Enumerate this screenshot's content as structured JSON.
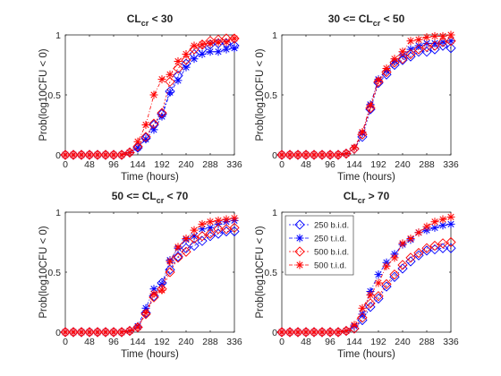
{
  "chart_data": [
    {
      "type": "line",
      "title": "CL",
      "title_sub": "cr",
      "title_suffix": " < 30",
      "title_prefix": "",
      "xlabel": "Time (hours)",
      "ylabel": "Prob(log10CFU < 0)",
      "xlim": [
        0,
        336
      ],
      "ylim": [
        0,
        1
      ],
      "xticks": [
        "0",
        "48",
        "96",
        "144",
        "192",
        "240",
        "288",
        "336"
      ],
      "yticks": [
        "0",
        "0.5",
        "1"
      ],
      "x": [
        0,
        16,
        32,
        48,
        64,
        80,
        96,
        112,
        128,
        144,
        160,
        176,
        192,
        208,
        224,
        240,
        256,
        272,
        288,
        304,
        320,
        336
      ],
      "series": [
        {
          "name": "250 b.i.d.",
          "color": "#0000ff",
          "marker": "diamond",
          "values": [
            0,
            0,
            0,
            0,
            0,
            0,
            0,
            0,
            0.02,
            0.06,
            0.14,
            0.25,
            0.34,
            0.53,
            0.66,
            0.76,
            0.84,
            0.88,
            0.92,
            0.93,
            0.93,
            0.91
          ]
        },
        {
          "name": "250 t.i.d.",
          "color": "#0000ff",
          "marker": "star",
          "values": [
            0,
            0,
            0,
            0,
            0,
            0,
            0,
            0,
            0.02,
            0.06,
            0.13,
            0.21,
            0.32,
            0.52,
            0.62,
            0.73,
            0.8,
            0.84,
            0.86,
            0.86,
            0.88,
            0.89
          ]
        },
        {
          "name": "500 b.i.d.",
          "color": "#ff0000",
          "marker": "diamond",
          "values": [
            0,
            0,
            0,
            0,
            0,
            0,
            0,
            0,
            0.02,
            0.07,
            0.15,
            0.26,
            0.35,
            0.61,
            0.72,
            0.79,
            0.88,
            0.92,
            0.95,
            0.96,
            0.97,
            0.97
          ]
        },
        {
          "name": "500 t.i.d.",
          "color": "#ff0000",
          "marker": "star",
          "values": [
            0,
            0,
            0,
            0,
            0,
            0,
            0,
            0,
            0.02,
            0.11,
            0.25,
            0.5,
            0.63,
            0.67,
            0.78,
            0.84,
            0.91,
            0.92,
            0.93,
            0.94,
            0.94,
            0.97
          ]
        }
      ]
    },
    {
      "type": "line",
      "title": "CL",
      "title_sub": "cr",
      "title_suffix": " < 50",
      "title_prefix": "30 <= ",
      "xlabel": "Time (hours)",
      "ylabel": "Prob(log10CFU < 0)",
      "xlim": [
        0,
        336
      ],
      "ylim": [
        0,
        1
      ],
      "xticks": [
        "0",
        "48",
        "96",
        "144",
        "192",
        "240",
        "288",
        "336"
      ],
      "yticks": [
        "0",
        "0.5",
        "1"
      ],
      "x": [
        0,
        16,
        32,
        48,
        64,
        80,
        96,
        112,
        128,
        144,
        160,
        176,
        192,
        208,
        224,
        240,
        256,
        272,
        288,
        304,
        320,
        336
      ],
      "series": [
        {
          "name": "250 b.i.d.",
          "color": "#0000ff",
          "marker": "diamond",
          "values": [
            0,
            0,
            0,
            0,
            0,
            0,
            0,
            0,
            0.01,
            0.05,
            0.15,
            0.38,
            0.6,
            0.67,
            0.75,
            0.79,
            0.82,
            0.86,
            0.86,
            0.88,
            0.91,
            0.89
          ]
        },
        {
          "name": "250 t.i.d.",
          "color": "#0000ff",
          "marker": "star",
          "values": [
            0,
            0,
            0,
            0,
            0,
            0,
            0,
            0,
            0.01,
            0.06,
            0.18,
            0.42,
            0.63,
            0.7,
            0.78,
            0.83,
            0.88,
            0.91,
            0.93,
            0.93,
            0.94,
            0.95
          ]
        },
        {
          "name": "500 b.i.d.",
          "color": "#ff0000",
          "marker": "diamond",
          "values": [
            0,
            0,
            0,
            0,
            0,
            0,
            0,
            0,
            0.01,
            0.05,
            0.17,
            0.39,
            0.61,
            0.69,
            0.77,
            0.8,
            0.84,
            0.88,
            0.9,
            0.91,
            0.94,
            0.95
          ]
        },
        {
          "name": "500 t.i.d.",
          "color": "#ff0000",
          "marker": "star",
          "values": [
            0,
            0,
            0,
            0,
            0,
            0,
            0,
            0,
            0.01,
            0.06,
            0.19,
            0.41,
            0.62,
            0.72,
            0.8,
            0.86,
            0.95,
            0.96,
            0.98,
            0.99,
            0.99,
            1.0
          ]
        }
      ]
    },
    {
      "type": "line",
      "title": "CL",
      "title_sub": "cr",
      "title_suffix": " < 70",
      "title_prefix": "50 <= ",
      "xlabel": "Time (hours)",
      "ylabel": "Prob(log10CFU < 0)",
      "xlim": [
        0,
        336
      ],
      "ylim": [
        0,
        1
      ],
      "xticks": [
        "0",
        "48",
        "96",
        "144",
        "192",
        "240",
        "288",
        "336"
      ],
      "yticks": [
        "0",
        "0.5",
        "1"
      ],
      "x": [
        0,
        16,
        32,
        48,
        64,
        80,
        96,
        112,
        128,
        144,
        160,
        176,
        192,
        208,
        224,
        240,
        256,
        272,
        288,
        304,
        320,
        336
      ],
      "series": [
        {
          "name": "250 b.i.d.",
          "color": "#0000ff",
          "marker": "diamond",
          "values": [
            0,
            0,
            0,
            0,
            0,
            0,
            0,
            0,
            0.01,
            0.04,
            0.16,
            0.3,
            0.41,
            0.52,
            0.63,
            0.7,
            0.72,
            0.76,
            0.8,
            0.82,
            0.84,
            0.84
          ]
        },
        {
          "name": "250 t.i.d.",
          "color": "#0000ff",
          "marker": "star",
          "values": [
            0,
            0,
            0,
            0,
            0,
            0,
            0,
            0,
            0.01,
            0.05,
            0.2,
            0.36,
            0.4,
            0.6,
            0.7,
            0.77,
            0.8,
            0.86,
            0.87,
            0.9,
            0.92,
            0.93
          ]
        },
        {
          "name": "500 b.i.d.",
          "color": "#ff0000",
          "marker": "diamond",
          "values": [
            0,
            0,
            0,
            0,
            0,
            0,
            0,
            0,
            0.01,
            0.04,
            0.15,
            0.29,
            0.36,
            0.5,
            0.62,
            0.67,
            0.78,
            0.8,
            0.82,
            0.86,
            0.86,
            0.87
          ]
        },
        {
          "name": "500 t.i.d.",
          "color": "#ff0000",
          "marker": "star",
          "values": [
            0,
            0,
            0,
            0,
            0,
            0,
            0,
            0,
            0.01,
            0.04,
            0.16,
            0.32,
            0.35,
            0.59,
            0.71,
            0.78,
            0.85,
            0.9,
            0.92,
            0.93,
            0.94,
            0.95
          ]
        }
      ]
    },
    {
      "type": "line",
      "title": "CL",
      "title_sub": "cr",
      "title_suffix": " > 70",
      "title_prefix": "",
      "xlabel": "Time (hours)",
      "ylabel": "Prob(log10CFU < 0)",
      "xlim": [
        0,
        336
      ],
      "ylim": [
        0,
        1
      ],
      "xticks": [
        "0",
        "48",
        "96",
        "144",
        "192",
        "240",
        "288",
        "336"
      ],
      "yticks": [
        "0",
        "0.5",
        "1"
      ],
      "legend": "top-left",
      "x": [
        0,
        16,
        32,
        48,
        64,
        80,
        96,
        112,
        128,
        144,
        160,
        176,
        192,
        208,
        224,
        240,
        256,
        272,
        288,
        304,
        320,
        336
      ],
      "series": [
        {
          "name": "250 b.i.d.",
          "color": "#0000ff",
          "marker": "diamond",
          "values": [
            0,
            0,
            0,
            0,
            0,
            0,
            0,
            0,
            0.01,
            0.03,
            0.1,
            0.21,
            0.28,
            0.38,
            0.46,
            0.53,
            0.59,
            0.64,
            0.68,
            0.69,
            0.7,
            0.7
          ]
        },
        {
          "name": "250 t.i.d.",
          "color": "#0000ff",
          "marker": "star",
          "values": [
            0,
            0,
            0,
            0,
            0,
            0,
            0,
            0,
            0.01,
            0.05,
            0.15,
            0.34,
            0.48,
            0.58,
            0.65,
            0.73,
            0.77,
            0.83,
            0.85,
            0.87,
            0.89,
            0.9
          ]
        },
        {
          "name": "500 b.i.d.",
          "color": "#ff0000",
          "marker": "diamond",
          "values": [
            0,
            0,
            0,
            0,
            0,
            0,
            0,
            0,
            0.01,
            0.03,
            0.12,
            0.24,
            0.3,
            0.4,
            0.48,
            0.56,
            0.62,
            0.66,
            0.7,
            0.72,
            0.74,
            0.75
          ]
        },
        {
          "name": "500 t.i.d.",
          "color": "#ff0000",
          "marker": "star",
          "values": [
            0,
            0,
            0,
            0,
            0,
            0,
            0,
            0,
            0.01,
            0.06,
            0.2,
            0.31,
            0.41,
            0.55,
            0.62,
            0.74,
            0.78,
            0.83,
            0.88,
            0.92,
            0.94,
            0.96
          ]
        }
      ]
    }
  ]
}
